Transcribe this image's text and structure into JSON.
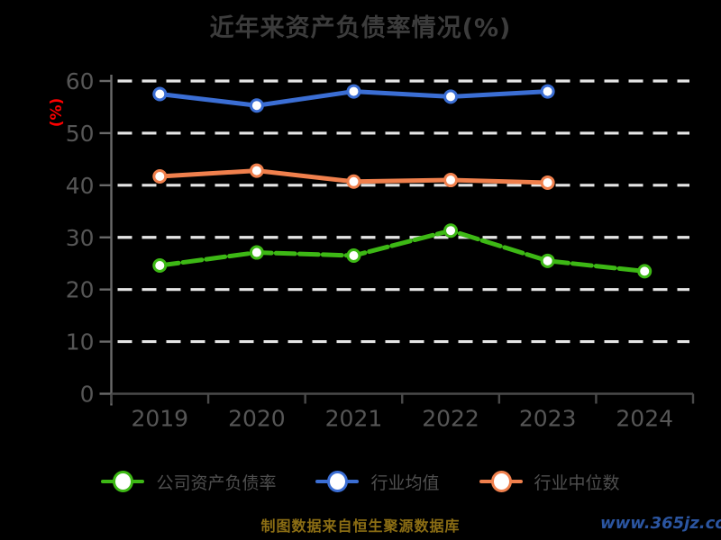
{
  "title": "近年来资产负债率情况(%)",
  "caption": "制图数据来自恒生聚源数据库",
  "watermark": "www.365jz.com",
  "colors": {
    "background": "#000000",
    "title": "#3c3c3c",
    "axis_y": "#6a6a6a",
    "axis_x": "#4a4a4a",
    "tick_label": "#565656",
    "gridline": "#e6e6e6",
    "ylabel": "#ff0000",
    "legend_label": "#4f4f4f",
    "caption": "#8c6e14",
    "watermark": "#2b55a0",
    "marker_fill": "#ffffff"
  },
  "chart_data": {
    "type": "line",
    "title": "近年来资产负债率情况(%)",
    "xlabel": "",
    "ylabel": "(%)",
    "categories": [
      "2019",
      "2020",
      "2021",
      "2022",
      "2023",
      "2024"
    ],
    "series": [
      {
        "name": "公司资产负债率",
        "color": "#3db815",
        "style": "dashed",
        "marker": "white-circle",
        "values": [
          24.6,
          27.1,
          26.5,
          31.3,
          25.5,
          23.5
        ]
      },
      {
        "name": "行业均值",
        "color": "#3b6ed4",
        "style": "solid",
        "marker": "white-circle",
        "values": [
          57.5,
          55.3,
          58.0,
          57.0,
          58.0,
          null
        ]
      },
      {
        "name": "行业中位数",
        "color": "#f0804d",
        "style": "solid",
        "marker": "white-circle",
        "values": [
          41.7,
          42.8,
          40.7,
          41.0,
          40.5,
          null
        ]
      }
    ],
    "ylim": [
      0,
      60
    ],
    "yticks": [
      0,
      10,
      20,
      30,
      40,
      50,
      60
    ],
    "grid": "horizontal white dashed lines",
    "legend_position": "bottom"
  }
}
